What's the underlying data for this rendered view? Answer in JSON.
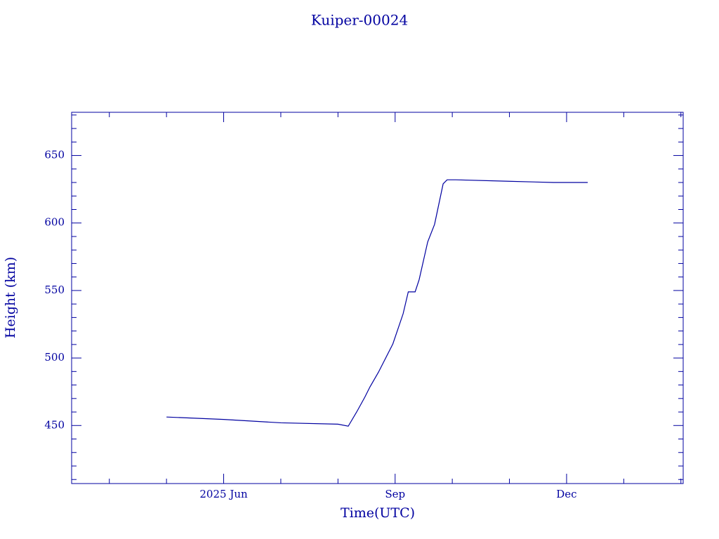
{
  "chart_data": {
    "type": "line",
    "title": "Kuiper-00024",
    "x_label": "Time(UTC)",
    "y_label": "Height (km)",
    "color": "#0000a0",
    "x": [
      4.0,
      5.0,
      6.0,
      7.0,
      7.18,
      7.34,
      7.47,
      7.56,
      7.71,
      7.96,
      8.14,
      8.23,
      8.35,
      8.42,
      8.57,
      8.69,
      8.84,
      8.91,
      9.06,
      9.92,
      10.77,
      11.37
    ],
    "series": [
      {
        "name": "Height",
        "color": "#0000a0",
        "values": [
          456.3,
          454.5,
          452.0,
          451.0,
          449.5,
          461,
          471,
          478.6,
          489.6,
          510.4,
          532.8,
          549,
          549,
          558,
          586,
          599,
          629,
          632,
          632,
          631,
          630,
          630
        ]
      }
    ],
    "xlim": [
      2.34,
      13.04
    ],
    "xticks": [
      {
        "value": 5,
        "label": "2025 Jun"
      },
      {
        "value": 8,
        "label": "Sep"
      },
      {
        "value": 11,
        "label": "Dec"
      }
    ],
    "xminorticks": [
      3,
      4,
      6,
      7,
      9,
      10,
      12,
      13
    ],
    "ylim": [
      407,
      682
    ],
    "yticks": [
      450,
      500,
      550,
      600,
      650
    ],
    "yminorticks": [
      410,
      420,
      430,
      440,
      460,
      470,
      480,
      490,
      510,
      520,
      530,
      540,
      560,
      570,
      580,
      590,
      610,
      620,
      630,
      640,
      660,
      670,
      680
    ]
  }
}
